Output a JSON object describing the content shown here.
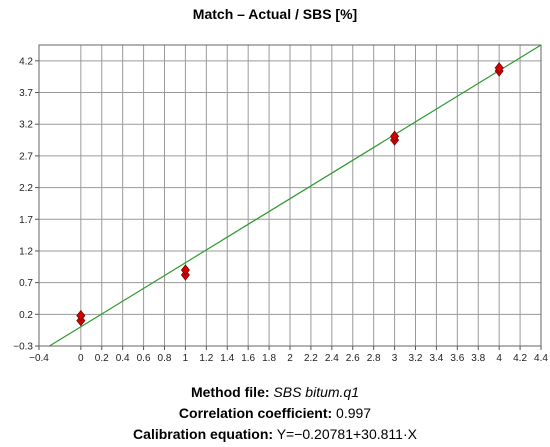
{
  "chart_data": {
    "type": "scatter",
    "title": "Match – Actual / SBS [%]",
    "xlabel": "",
    "ylabel": "",
    "xlim": [
      -0.4,
      4.4
    ],
    "ylim": [
      -0.3,
      4.45
    ],
    "x_ticks": [
      "−0.4",
      "0",
      "0.2",
      "0.4",
      "0.6",
      "0.8",
      "1",
      "1.2",
      "1.4",
      "1.6",
      "1.8",
      "2",
      "2.2",
      "2.4",
      "2.6",
      "2.8",
      "3",
      "3.2",
      "3.4",
      "3.6",
      "3.8",
      "4",
      "4.2",
      "4.4"
    ],
    "x_tick_values": [
      -0.4,
      0,
      0.2,
      0.4,
      0.6,
      0.8,
      1,
      1.2,
      1.4,
      1.6,
      1.8,
      2,
      2.2,
      2.4,
      2.6,
      2.8,
      3,
      3.2,
      3.4,
      3.6,
      3.8,
      4,
      4.2,
      4.4
    ],
    "y_ticks": [
      "−0.3",
      "0.2",
      "0.7",
      "1.2",
      "1.7",
      "2.2",
      "2.7",
      "3.2",
      "3.7",
      "4.2"
    ],
    "y_tick_values": [
      -0.3,
      0.2,
      0.7,
      1.2,
      1.7,
      2.2,
      2.7,
      3.2,
      3.7,
      4.2
    ],
    "grid": true,
    "series": [
      {
        "points": [
          {
            "x": 0,
            "y": 0.1
          },
          {
            "x": 0,
            "y": 0.18
          },
          {
            "x": 1,
            "y": 0.82
          },
          {
            "x": 1,
            "y": 0.9
          },
          {
            "x": 3,
            "y": 2.95
          },
          {
            "x": 3,
            "y": 3.01
          },
          {
            "x": 4,
            "y": 4.04
          },
          {
            "x": 4,
            "y": 4.09
          }
        ],
        "color": "#d40000"
      }
    ],
    "fit_line": {
      "from": [
        -0.3,
        -0.3
      ],
      "to": [
        4.4,
        4.45
      ],
      "color": "#2e9a2e"
    }
  },
  "footer": {
    "method_label": "Method file:",
    "method_value": "SBS bitum.q1",
    "corr_label": "Correlation coefficient:",
    "corr_value": "0.997",
    "eq_label": "Calibration equation:",
    "eq_value": "Y=−0.20781+30.811·X"
  }
}
